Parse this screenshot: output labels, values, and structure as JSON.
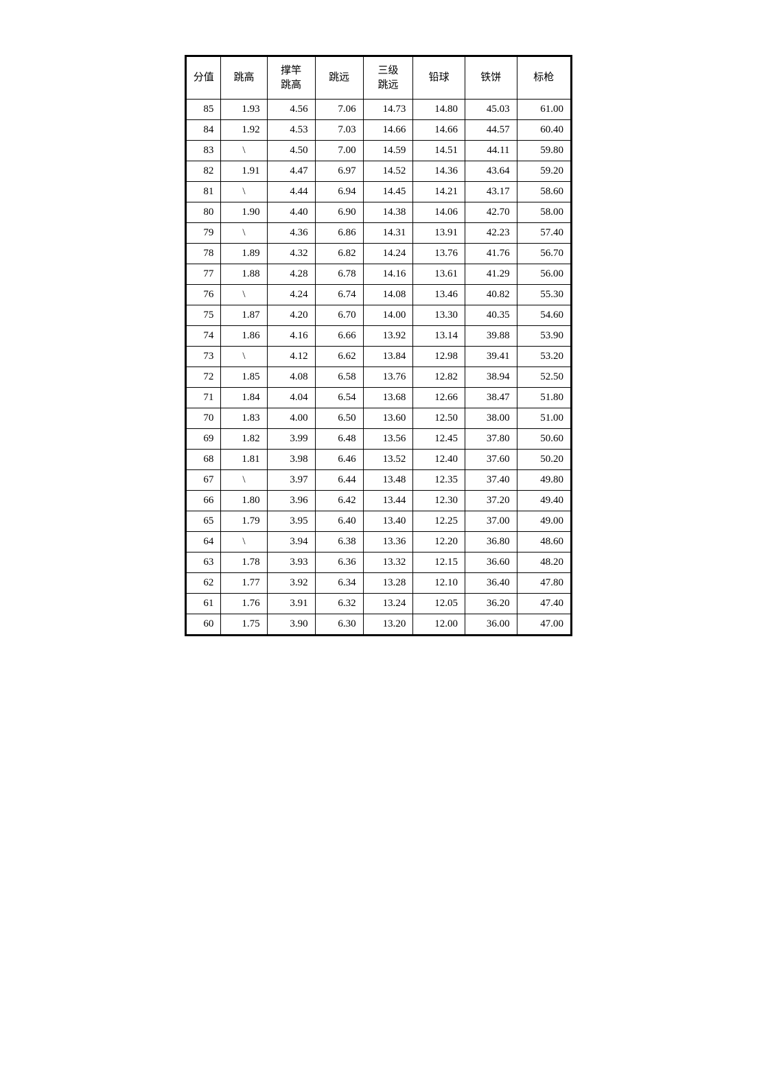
{
  "table": {
    "type": "table",
    "border_color": "#000000",
    "background_color": "#ffffff",
    "text_color": "#000000",
    "font_size_pt": 11,
    "columns": [
      "分值",
      "跳高",
      "撑竿\n跳高",
      "跳远",
      "三级\n跳远",
      "铅球",
      "铁饼",
      "标枪"
    ],
    "rows": [
      [
        "85",
        "1.93",
        "4.56",
        "7.06",
        "14.73",
        "14.80",
        "45.03",
        "61.00"
      ],
      [
        "84",
        "1.92",
        "4.53",
        "7.03",
        "14.66",
        "14.66",
        "44.57",
        "60.40"
      ],
      [
        "83",
        "\\",
        "4.50",
        "7.00",
        "14.59",
        "14.51",
        "44.11",
        "59.80"
      ],
      [
        "82",
        "1.91",
        "4.47",
        "6.97",
        "14.52",
        "14.36",
        "43.64",
        "59.20"
      ],
      [
        "81",
        "\\",
        "4.44",
        "6.94",
        "14.45",
        "14.21",
        "43.17",
        "58.60"
      ],
      [
        "80",
        "1.90",
        "4.40",
        "6.90",
        "14.38",
        "14.06",
        "42.70",
        "58.00"
      ],
      [
        "79",
        "\\",
        "4.36",
        "6.86",
        "14.31",
        "13.91",
        "42.23",
        "57.40"
      ],
      [
        "78",
        "1.89",
        "4.32",
        "6.82",
        "14.24",
        "13.76",
        "41.76",
        "56.70"
      ],
      [
        "77",
        "1.88",
        "4.28",
        "6.78",
        "14.16",
        "13.61",
        "41.29",
        "56.00"
      ],
      [
        "76",
        "\\",
        "4.24",
        "6.74",
        "14.08",
        "13.46",
        "40.82",
        "55.30"
      ],
      [
        "75",
        "1.87",
        "4.20",
        "6.70",
        "14.00",
        "13.30",
        "40.35",
        "54.60"
      ],
      [
        "74",
        "1.86",
        "4.16",
        "6.66",
        "13.92",
        "13.14",
        "39.88",
        "53.90"
      ],
      [
        "73",
        "\\",
        "4.12",
        "6.62",
        "13.84",
        "12.98",
        "39.41",
        "53.20"
      ],
      [
        "72",
        "1.85",
        "4.08",
        "6.58",
        "13.76",
        "12.82",
        "38.94",
        "52.50"
      ],
      [
        "71",
        "1.84",
        "4.04",
        "6.54",
        "13.68",
        "12.66",
        "38.47",
        "51.80"
      ],
      [
        "70",
        "1.83",
        "4.00",
        "6.50",
        "13.60",
        "12.50",
        "38.00",
        "51.00"
      ],
      [
        "69",
        "1.82",
        "3.99",
        "6.48",
        "13.56",
        "12.45",
        "37.80",
        "50.60"
      ],
      [
        "68",
        "1.81",
        "3.98",
        "6.46",
        "13.52",
        "12.40",
        "37.60",
        "50.20"
      ],
      [
        "67",
        "\\",
        "3.97",
        "6.44",
        "13.48",
        "12.35",
        "37.40",
        "49.80"
      ],
      [
        "66",
        "1.80",
        "3.96",
        "6.42",
        "13.44",
        "12.30",
        "37.20",
        "49.40"
      ],
      [
        "65",
        "1.79",
        "3.95",
        "6.40",
        "13.40",
        "12.25",
        "37.00",
        "49.00"
      ],
      [
        "64",
        "\\",
        "3.94",
        "6.38",
        "13.36",
        "12.20",
        "36.80",
        "48.60"
      ],
      [
        "63",
        "1.78",
        "3.93",
        "6.36",
        "13.32",
        "12.15",
        "36.60",
        "48.20"
      ],
      [
        "62",
        "1.77",
        "3.92",
        "6.34",
        "13.28",
        "12.10",
        "36.40",
        "47.80"
      ],
      [
        "61",
        "1.76",
        "3.91",
        "6.32",
        "13.24",
        "12.05",
        "36.20",
        "47.40"
      ],
      [
        "60",
        "1.75",
        "3.90",
        "6.30",
        "13.20",
        "12.00",
        "36.00",
        "47.00"
      ]
    ]
  }
}
